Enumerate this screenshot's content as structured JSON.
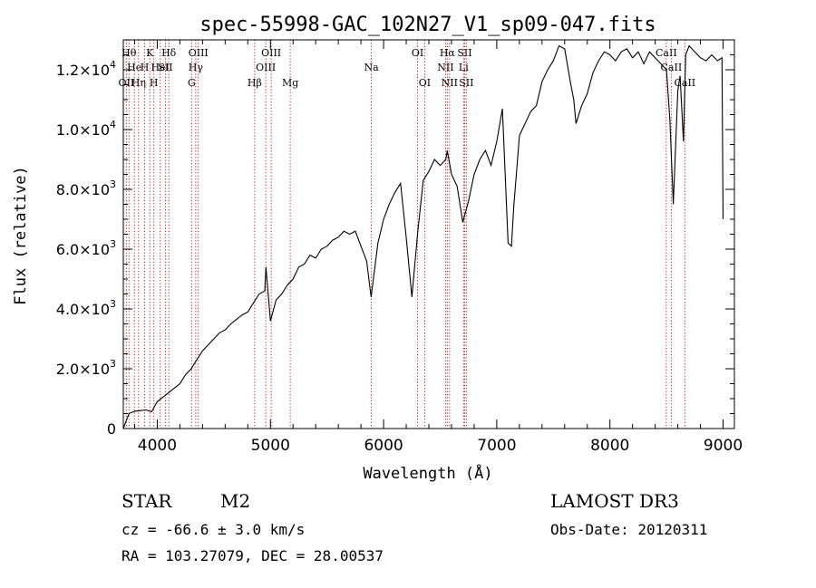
{
  "chart_data": {
    "type": "line",
    "title": "spec-55998-GAC_102N27_V1_sp09-047.fits",
    "xlabel": "Wavelength (Å)",
    "ylabel": "Flux (relative)",
    "xlim": [
      3700,
      9100
    ],
    "ylim": [
      0,
      13000
    ],
    "x_ticks": [
      4000,
      5000,
      6000,
      7000,
      8000,
      9000
    ],
    "x_tick_labels": [
      "4000",
      "5000",
      "6000",
      "7000",
      "8000",
      "9000"
    ],
    "y_ticks": [
      {
        "value": 0,
        "mant": "0",
        "exp": ""
      },
      {
        "value": 2000,
        "mant": "2.0×10",
        "exp": "3"
      },
      {
        "value": 4000,
        "mant": "4.0×10",
        "exp": "3"
      },
      {
        "value": 6000,
        "mant": "6.0×10",
        "exp": "3"
      },
      {
        "value": 8000,
        "mant": "8.0×10",
        "exp": "3"
      },
      {
        "value": 10000,
        "mant": "1.0×10",
        "exp": "4"
      },
      {
        "value": 12000,
        "mant": "1.2×10",
        "exp": "4"
      }
    ],
    "series": [
      {
        "name": "spectrum",
        "x": [
          3700,
          3750,
          3800,
          3850,
          3900,
          3950,
          4000,
          4050,
          4100,
          4150,
          4200,
          4250,
          4300,
          4350,
          4400,
          4450,
          4500,
          4550,
          4600,
          4650,
          4700,
          4750,
          4800,
          4850,
          4900,
          4950,
          4960,
          5000,
          5050,
          5100,
          5150,
          5200,
          5250,
          5300,
          5350,
          5400,
          5450,
          5500,
          5550,
          5600,
          5650,
          5700,
          5750,
          5800,
          5850,
          5890,
          5950,
          6000,
          6050,
          6100,
          6150,
          6200,
          6250,
          6300,
          6350,
          6400,
          6450,
          6500,
          6550,
          6563,
          6600,
          6650,
          6700,
          6750,
          6800,
          6850,
          6900,
          6950,
          7000,
          7050,
          7100,
          7130,
          7150,
          7200,
          7250,
          7300,
          7350,
          7400,
          7450,
          7500,
          7550,
          7600,
          7650,
          7680,
          7700,
          7750,
          7800,
          7850,
          7900,
          7950,
          8000,
          8050,
          8100,
          8150,
          8200,
          8250,
          8300,
          8350,
          8400,
          8450,
          8500,
          8530,
          8560,
          8600,
          8620,
          8650,
          8670,
          8700,
          8750,
          8800,
          8850,
          8900,
          8950,
          8990,
          9000
        ],
        "y": [
          0,
          500,
          580,
          600,
          620,
          560,
          900,
          1050,
          1200,
          1350,
          1500,
          1800,
          2000,
          2300,
          2600,
          2800,
          3000,
          3200,
          3300,
          3500,
          3650,
          3800,
          3900,
          4200,
          4500,
          4600,
          5400,
          3600,
          4300,
          4500,
          4800,
          5000,
          5400,
          5500,
          5800,
          5700,
          6000,
          6100,
          6300,
          6400,
          6600,
          6500,
          6600,
          6100,
          5600,
          4400,
          6200,
          7000,
          7500,
          7900,
          8200,
          6400,
          4400,
          6500,
          8300,
          8600,
          9000,
          8800,
          9000,
          9300,
          8500,
          8100,
          6900,
          7600,
          8500,
          9000,
          9300,
          8800,
          9600,
          10700,
          6200,
          6100,
          7400,
          9800,
          10200,
          10600,
          10800,
          11600,
          12000,
          12300,
          12800,
          12700,
          11600,
          11000,
          10200,
          10800,
          11200,
          11900,
          12300,
          12600,
          12500,
          12300,
          12600,
          12700,
          12400,
          12600,
          12200,
          12600,
          12400,
          12200,
          12000,
          10300,
          7500,
          11300,
          11800,
          9600,
          12500,
          12800,
          12600,
          12400,
          12300,
          12500,
          12300,
          12400,
          7000
        ]
      }
    ],
    "lines": [
      {
        "wave": 3750,
        "label": "Hθ",
        "row": 1
      },
      {
        "wave": 3727,
        "label": "OII",
        "row": 3
      },
      {
        "wave": 3798,
        "label": "He",
        "row": 2
      },
      {
        "wave": 3835,
        "label": "Hη",
        "row": 3
      },
      {
        "wave": 3889,
        "label": "H",
        "row": 2
      },
      {
        "wave": 3934,
        "label": "K",
        "row": 1
      },
      {
        "wave": 3970,
        "label": "H",
        "row": 3
      },
      {
        "wave": 4026,
        "label": "HeI",
        "row": 2
      },
      {
        "wave": 4072,
        "label": "SII",
        "row": 2
      },
      {
        "wave": 4102,
        "label": "Hδ",
        "row": 1
      },
      {
        "wave": 4304,
        "label": "G",
        "row": 3
      },
      {
        "wave": 4340,
        "label": "Hγ",
        "row": 2
      },
      {
        "wave": 4363,
        "label": "OIII",
        "row": 1
      },
      {
        "wave": 4861,
        "label": "Hβ",
        "row": 3
      },
      {
        "wave": 4959,
        "label": "OIII",
        "row": 2
      },
      {
        "wave": 5007,
        "label": "OIII",
        "row": 1
      },
      {
        "wave": 5175,
        "label": "Mg",
        "row": 3
      },
      {
        "wave": 5892,
        "label": "Na",
        "row": 2
      },
      {
        "wave": 6300,
        "label": "OI",
        "row": 1
      },
      {
        "wave": 6363,
        "label": "OI",
        "row": 3
      },
      {
        "wave": 6548,
        "label": "NII",
        "row": 2
      },
      {
        "wave": 6563,
        "label": "Hα",
        "row": 1
      },
      {
        "wave": 6583,
        "label": "NII",
        "row": 3
      },
      {
        "wave": 6707,
        "label": "Li",
        "row": 2
      },
      {
        "wave": 6716,
        "label": "SII",
        "row": 1
      },
      {
        "wave": 6731,
        "label": "SII",
        "row": 3
      },
      {
        "wave": 8498,
        "label": "CaII",
        "row": 1
      },
      {
        "wave": 8542,
        "label": "CaII",
        "row": 2
      },
      {
        "wave": 8662,
        "label": "CaII",
        "row": 3
      }
    ]
  },
  "info": {
    "object_class": "STAR",
    "subclass": "M2",
    "cz_line": "cz = -66.6 ± 3.0 km/s",
    "coords_line": "RA = 103.27079, DEC =  28.00537",
    "survey": "LAMOST DR3",
    "obs_date": "Obs-Date: 20120311"
  }
}
